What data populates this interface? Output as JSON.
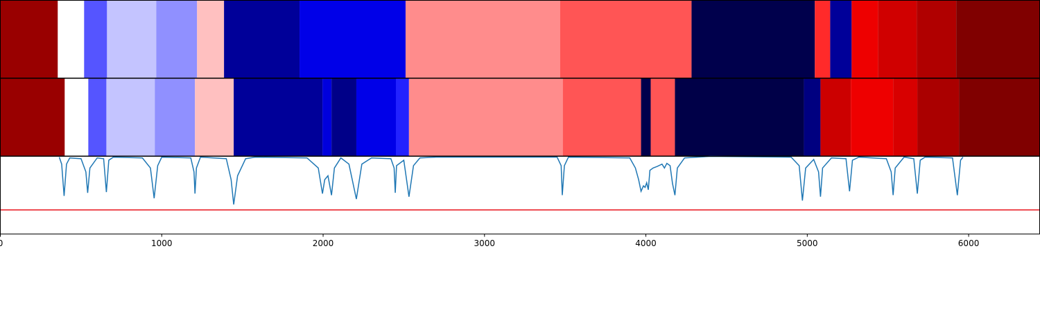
{
  "chart_data": [
    {
      "type": "segments",
      "xlim": [
        0,
        6440
      ],
      "edges": [
        0,
        356,
        519,
        661,
        966,
        1219,
        1386,
        1854,
        2511,
        3468,
        4283,
        5047,
        5142,
        5275,
        5438,
        5678,
        5923,
        6440
      ],
      "colors": [
        "#990000",
        "#ffffff",
        "#5555ff",
        "#c4c4ff",
        "#9090ff",
        "#ffc0c0",
        "#000099",
        "#0000e8",
        "#ff8c8c",
        "#ff5555",
        "#00004c",
        "#ff2a2a",
        "#000099",
        "#ee0000",
        "#d00000",
        "#b00000",
        "#800000"
      ]
    },
    {
      "type": "segments",
      "xlim": [
        0,
        6440
      ],
      "edges": [
        0,
        399,
        545,
        657,
        957,
        1206,
        1446,
        1996,
        2052,
        2206,
        2451,
        2532,
        3485,
        3970,
        4030,
        4180,
        4979,
        5082,
        5270,
        5532,
        5682,
        5940,
        6440
      ],
      "colors": [
        "#990000",
        "#ffffff",
        "#5555ff",
        "#c4c4ff",
        "#9090ff",
        "#ffc0c0",
        "#000099",
        "#0000dd",
        "#000088",
        "#0000e8",
        "#2222ff",
        "#ff8c8c",
        "#ff5555",
        "#00004c",
        "#ff5555",
        "#000048",
        "#000080",
        "#cc0000",
        "#ee0000",
        "#d80000",
        "#aa0000",
        "#800000"
      ]
    },
    {
      "type": "line",
      "xlim": [
        0,
        6440
      ],
      "ylim": [
        0,
        1
      ],
      "xticks": [
        0,
        1000,
        2000,
        3000,
        4000,
        5000,
        6000
      ],
      "hline": {
        "value": 0.31,
        "color": "#e8141c"
      },
      "series": [
        {
          "color": "#1f77b4",
          "x": [
            365,
            380,
            395,
            410,
            430,
            500,
            530,
            541,
            555,
            600,
            640,
            657,
            672,
            700,
            880,
            930,
            953,
            975,
            1000,
            1180,
            1200,
            1206,
            1215,
            1240,
            1400,
            1430,
            1446,
            1470,
            1520,
            1580,
            1900,
            1970,
            1996,
            2010,
            2030,
            2052,
            2070,
            2110,
            2160,
            2206,
            2240,
            2300,
            2420,
            2440,
            2447,
            2455,
            2500,
            2532,
            2560,
            2600,
            2700,
            3450,
            3475,
            3482,
            3495,
            3520,
            3900,
            3935,
            3955,
            3970,
            3985,
            3995,
            4005,
            4015,
            4025,
            4045,
            4070,
            4100,
            4115,
            4130,
            4150,
            4165,
            4180,
            4195,
            4240,
            4400,
            4900,
            4950,
            4970,
            4990,
            5040,
            5070,
            5082,
            5095,
            5150,
            5240,
            5262,
            5280,
            5320,
            5490,
            5520,
            5532,
            5545,
            5600,
            5660,
            5682,
            5700,
            5730,
            5900,
            5930,
            5950,
            5965
          ],
          "values": [
            0.99,
            0.9,
            0.49,
            0.9,
            0.98,
            0.97,
            0.8,
            0.53,
            0.85,
            0.98,
            0.97,
            0.54,
            0.95,
            0.99,
            0.98,
            0.85,
            0.46,
            0.88,
            0.99,
            0.98,
            0.8,
            0.52,
            0.85,
            0.99,
            0.97,
            0.7,
            0.38,
            0.75,
            0.97,
            0.99,
            0.98,
            0.85,
            0.52,
            0.7,
            0.75,
            0.5,
            0.85,
            0.98,
            0.9,
            0.45,
            0.9,
            0.98,
            0.97,
            0.85,
            0.53,
            0.88,
            0.95,
            0.48,
            0.88,
            0.98,
            0.99,
            0.99,
            0.88,
            0.5,
            0.88,
            0.99,
            0.98,
            0.85,
            0.7,
            0.55,
            0.62,
            0.6,
            0.66,
            0.57,
            0.82,
            0.85,
            0.87,
            0.9,
            0.85,
            0.91,
            0.88,
            0.65,
            0.5,
            0.85,
            0.98,
            1.0,
            0.99,
            0.88,
            0.43,
            0.85,
            0.96,
            0.8,
            0.48,
            0.85,
            0.98,
            0.97,
            0.55,
            0.95,
            0.99,
            0.97,
            0.8,
            0.5,
            0.85,
            0.99,
            0.97,
            0.52,
            0.95,
            0.99,
            0.98,
            0.5,
            0.95,
            0.99
          ]
        }
      ]
    }
  ]
}
